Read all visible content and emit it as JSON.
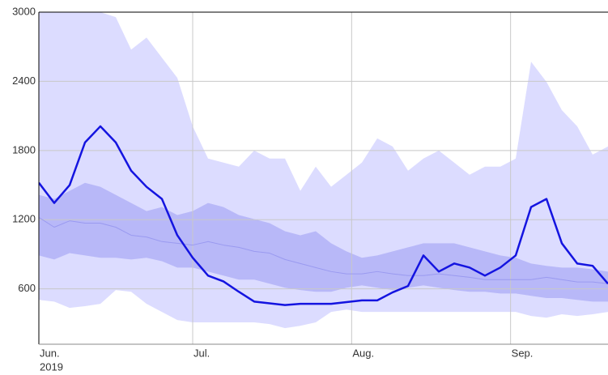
{
  "chart_data": {
    "type": "line",
    "x": [
      0,
      3,
      6,
      9,
      12,
      15,
      18,
      21,
      24,
      27,
      30,
      33,
      36,
      39,
      42,
      45,
      48,
      51,
      54,
      57,
      60,
      63,
      66,
      69,
      72,
      75,
      78,
      81,
      84,
      87,
      90,
      93,
      96,
      99,
      102,
      105,
      108,
      111
    ],
    "xlim": [
      0,
      111
    ],
    "xticks": [
      {
        "value": 0,
        "label": "Jun."
      },
      {
        "value": 30,
        "label": "Jul."
      },
      {
        "value": 61,
        "label": "Aug."
      },
      {
        "value": 92,
        "label": "Sep."
      }
    ],
    "year_label": "2019",
    "ylim": [
      120,
      3000
    ],
    "yticks": [
      600,
      1200,
      1800,
      2400,
      3000
    ],
    "grid": true,
    "bands": [
      {
        "color": "#dcdcff",
        "high": [
          3000,
          3000,
          3000,
          3000,
          3000,
          2957,
          2675,
          2780,
          2605,
          2430,
          2010,
          1730,
          1695,
          1660,
          1800,
          1730,
          1730,
          1450,
          1660,
          1485,
          1590,
          1695,
          1905,
          1835,
          1625,
          1730,
          1800,
          1695,
          1590,
          1660,
          1660,
          1730,
          2570,
          2395,
          2150,
          2010,
          1765,
          1835
        ],
        "low": [
          505,
          490,
          435,
          450,
          470,
          590,
          575,
          470,
          400,
          330,
          310,
          310,
          310,
          310,
          310,
          295,
          260,
          280,
          310,
          400,
          420,
          400,
          400,
          400,
          400,
          400,
          400,
          400,
          400,
          400,
          400,
          400,
          365,
          350,
          380,
          365,
          380,
          400
        ]
      },
      {
        "color": "#b8b8f8",
        "high": [
          1415,
          1380,
          1450,
          1520,
          1485,
          1415,
          1345,
          1275,
          1310,
          1240,
          1275,
          1345,
          1310,
          1240,
          1205,
          1170,
          1100,
          1065,
          1100,
          995,
          925,
          870,
          890,
          925,
          960,
          995,
          995,
          995,
          960,
          925,
          890,
          870,
          820,
          800,
          785,
          785,
          770,
          750
        ],
        "low": [
          890,
          855,
          910,
          890,
          870,
          870,
          855,
          870,
          840,
          785,
          785,
          750,
          715,
          680,
          680,
          645,
          610,
          590,
          575,
          575,
          610,
          630,
          610,
          590,
          610,
          630,
          610,
          590,
          575,
          575,
          560,
          560,
          540,
          520,
          520,
          505,
          490,
          490
        ]
      }
    ],
    "series": [
      {
        "color": "#9a9af0",
        "width": 1,
        "values": [
          1220,
          1135,
          1190,
          1170,
          1170,
          1135,
          1065,
          1050,
          1010,
          995,
          980,
          1010,
          980,
          960,
          925,
          910,
          855,
          820,
          785,
          750,
          730,
          730,
          750,
          730,
          715,
          715,
          730,
          715,
          700,
          680,
          680,
          680,
          680,
          700,
          680,
          660,
          660,
          645
        ]
      },
      {
        "color": "#1414e0",
        "width": 2.5,
        "values": [
          1520,
          1345,
          1500,
          1870,
          2010,
          1870,
          1625,
          1485,
          1380,
          1065,
          870,
          715,
          665,
          575,
          490,
          475,
          460,
          470,
          470,
          470,
          485,
          500,
          500,
          570,
          625,
          890,
          750,
          820,
          785,
          715,
          785,
          890,
          1310,
          1380,
          995,
          820,
          800,
          645
        ]
      }
    ]
  }
}
